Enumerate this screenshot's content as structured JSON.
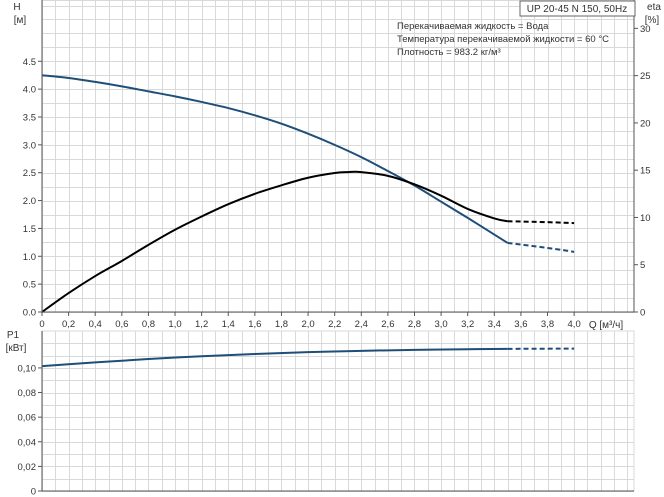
{
  "chart_data": [
    {
      "type": "line",
      "title": "",
      "xlabel": "Q [м³/ч]",
      "ylabel_left_name": "H",
      "ylabel_left_unit": "[м]",
      "ylabel_right_name": "eta",
      "ylabel_right_unit": "[%]",
      "xlim": [
        0,
        4.45
      ],
      "ylim_left": [
        0,
        5.6
      ],
      "ylim_right": [
        0,
        33
      ],
      "x_ticks": [
        "0",
        "0,2",
        "0,4",
        "0,6",
        "0,8",
        "1,0",
        "1,2",
        "1,4",
        "1,6",
        "1,8",
        "2,0",
        "2,2",
        "2,4",
        "2,6",
        "2,8",
        "3,0",
        "3,2",
        "3,4",
        "3,6",
        "3,8",
        "4,0"
      ],
      "y_ticks_left": [
        "0.0",
        "0.5",
        "1.0",
        "1.5",
        "2.0",
        "2.5",
        "3.0",
        "3.5",
        "4.0",
        "4.5"
      ],
      "y_ticks_right": [
        "0",
        "5",
        "10",
        "15",
        "20",
        "25",
        "30"
      ],
      "grid": true,
      "info_box": {
        "model": "UP 20-45 N 150, 50Hz",
        "lines": [
          "Перекачиваемая жидкость = Вода",
          "Температура перекачиваемой жидкости = 60 °C",
          "Плотность = 983.2 кг/м³"
        ]
      },
      "series": [
        {
          "axis": "left",
          "color": "#1f4e79",
          "x": [
            0,
            0.2,
            0.4,
            0.6,
            0.8,
            1.0,
            1.2,
            1.4,
            1.6,
            1.8,
            2.0,
            2.2,
            2.4,
            2.6,
            2.8,
            3.0,
            3.2,
            3.4,
            3.5
          ],
          "y": [
            4.25,
            4.2,
            4.13,
            4.05,
            3.96,
            3.87,
            3.77,
            3.66,
            3.53,
            3.38,
            3.2,
            3.0,
            2.78,
            2.53,
            2.27,
            1.98,
            1.69,
            1.39,
            1.24
          ],
          "extension_x": [
            3.5,
            3.8,
            4.0
          ],
          "extension_y": [
            1.24,
            1.15,
            1.08
          ]
        },
        {
          "axis": "right",
          "color": "#000000",
          "x": [
            0,
            0.2,
            0.4,
            0.6,
            0.8,
            1.0,
            1.2,
            1.4,
            1.6,
            1.8,
            2.0,
            2.2,
            2.3,
            2.4,
            2.6,
            2.8,
            3.0,
            3.2,
            3.4,
            3.5
          ],
          "y": [
            0,
            2.0,
            3.8,
            5.4,
            7.1,
            8.7,
            10.1,
            11.4,
            12.5,
            13.4,
            14.2,
            14.7,
            14.8,
            14.8,
            14.4,
            13.5,
            12.3,
            10.9,
            9.9,
            9.6
          ],
          "extension_x": [
            3.5,
            3.8,
            4.0
          ],
          "extension_y": [
            9.6,
            9.5,
            9.4
          ]
        }
      ]
    },
    {
      "type": "line",
      "title": "",
      "ylabel_name": "P1",
      "ylabel_unit": "[кВт]",
      "xlim": [
        0,
        4.45
      ],
      "ylim": [
        0,
        0.13
      ],
      "y_ticks": [
        "0",
        "0,02",
        "0,04",
        "0,06",
        "0,08",
        "0,10"
      ],
      "grid": true,
      "series": [
        {
          "color": "#1f4e79",
          "x": [
            0,
            0.4,
            0.8,
            1.2,
            1.6,
            2.0,
            2.4,
            2.8,
            3.2,
            3.5
          ],
          "y": [
            0.1015,
            0.1045,
            0.1072,
            0.1095,
            0.1113,
            0.1128,
            0.1139,
            0.1147,
            0.1152,
            0.1155
          ],
          "extension_x": [
            3.5,
            4.0
          ],
          "extension_y": [
            0.1155,
            0.1157
          ]
        }
      ]
    }
  ]
}
